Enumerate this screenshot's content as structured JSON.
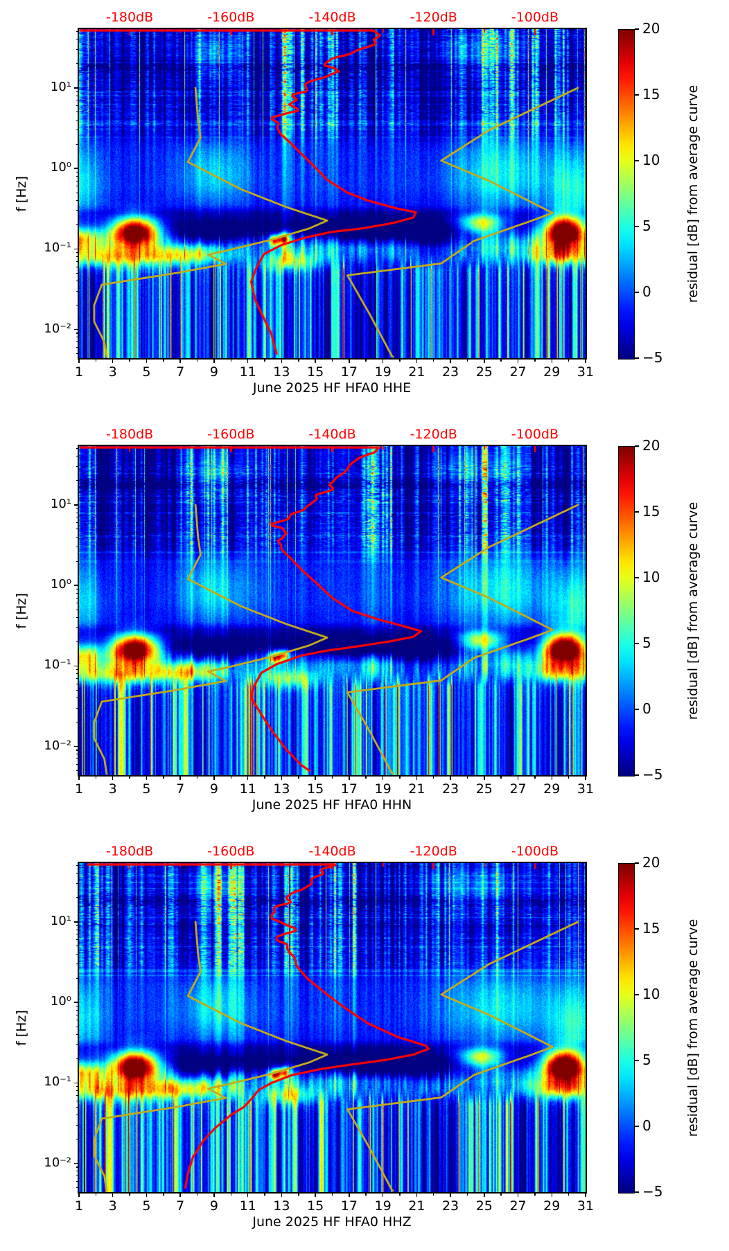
{
  "figure": {
    "background": "#ffffff",
    "subplot_count": 3
  },
  "chart_data": {
    "type": "heatmap",
    "description": "Three spectrogram panels of PSD residual vs average curve, June 2025, station HFA0, channels HHE/HHN/HHZ, with overlaid mode PSD curve (red) and low/high noise model curves (yellow) referenced to the red top dB axis.",
    "subplots": [
      {
        "channel": "HHE",
        "xlabel": "June 2025 HF HFA0  HHE",
        "seed": 11,
        "red_mode_curve_dB_Hz": [
          [
            -189.5,
            53
          ],
          [
            -131,
            53
          ],
          [
            -131,
            45
          ],
          [
            -133,
            38
          ],
          [
            -136,
            30
          ],
          [
            -139,
            24
          ],
          [
            -141,
            19
          ],
          [
            -139,
            16
          ],
          [
            -143,
            13
          ],
          [
            -145,
            11
          ],
          [
            -144,
            9
          ],
          [
            -147,
            7.5
          ],
          [
            -149,
            6.2
          ],
          [
            -148,
            5.2
          ],
          [
            -152,
            4.3
          ],
          [
            -151.5,
            3.4
          ],
          [
            -150,
            2.6
          ],
          [
            -148,
            2.0
          ],
          [
            -146,
            1.5
          ],
          [
            -143.5,
            1.05
          ],
          [
            -141,
            0.72
          ],
          [
            -137,
            0.5
          ],
          [
            -133,
            0.4
          ],
          [
            -127.5,
            0.32
          ],
          [
            -123.5,
            0.285
          ],
          [
            -124,
            0.245
          ],
          [
            -128,
            0.21
          ],
          [
            -134,
            0.18
          ],
          [
            -140,
            0.163
          ],
          [
            -145,
            0.14
          ],
          [
            -150,
            0.112
          ],
          [
            -153.5,
            0.086
          ],
          [
            -155,
            0.058
          ],
          [
            -156,
            0.039
          ],
          [
            -155.2,
            0.023
          ],
          [
            -153.5,
            0.0137
          ],
          [
            -152,
            0.0087
          ],
          [
            -151,
            0.005
          ]
        ]
      },
      {
        "channel": "HHN",
        "xlabel": "June 2025 HF HFA0  HHN",
        "seed": 22,
        "red_mode_curve_dB_Hz": [
          [
            -189.5,
            53
          ],
          [
            -129.5,
            53
          ],
          [
            -130,
            45
          ],
          [
            -133,
            36
          ],
          [
            -136,
            28
          ],
          [
            -139,
            22
          ],
          [
            -140,
            17
          ],
          [
            -142,
            14
          ],
          [
            -144,
            11.5
          ],
          [
            -146,
            9
          ],
          [
            -148,
            7
          ],
          [
            -150,
            5.5
          ],
          [
            -149,
            4.5
          ],
          [
            -151,
            3.6
          ],
          [
            -150,
            2.8
          ],
          [
            -148,
            2.1
          ],
          [
            -146,
            1.55
          ],
          [
            -143,
            1.05
          ],
          [
            -140,
            0.7
          ],
          [
            -136,
            0.48
          ],
          [
            -131,
            0.38
          ],
          [
            -125,
            0.3
          ],
          [
            -122.5,
            0.27
          ],
          [
            -124,
            0.23
          ],
          [
            -129,
            0.2
          ],
          [
            -135,
            0.175
          ],
          [
            -141,
            0.155
          ],
          [
            -146,
            0.135
          ],
          [
            -151,
            0.105
          ],
          [
            -154,
            0.082
          ],
          [
            -155.5,
            0.055
          ],
          [
            -156,
            0.04
          ],
          [
            -154,
            0.025
          ],
          [
            -152,
            0.016
          ],
          [
            -149,
            0.009
          ],
          [
            -146,
            0.0058
          ],
          [
            -144.5,
            0.005
          ]
        ]
      },
      {
        "channel": "HHZ",
        "xlabel": "June 2025 HF HFA0  HHZ",
        "seed": 33,
        "red_mode_curve_dB_Hz": [
          [
            -189.5,
            53
          ],
          [
            -141,
            53
          ],
          [
            -141,
            45
          ],
          [
            -143,
            36
          ],
          [
            -145,
            27
          ],
          [
            -147,
            20
          ],
          [
            -149,
            14
          ],
          [
            -150,
            11
          ],
          [
            -148,
            8.5
          ],
          [
            -151,
            6.5
          ],
          [
            -149.5,
            5
          ],
          [
            -148,
            3.8
          ],
          [
            -147,
            2.8
          ],
          [
            -145,
            2.0
          ],
          [
            -142,
            1.4
          ],
          [
            -138,
            0.9
          ],
          [
            -133,
            0.55
          ],
          [
            -127,
            0.37
          ],
          [
            -121.5,
            0.29
          ],
          [
            -121,
            0.265
          ],
          [
            -124,
            0.225
          ],
          [
            -129,
            0.195
          ],
          [
            -136,
            0.17
          ],
          [
            -142,
            0.15
          ],
          [
            -148,
            0.125
          ],
          [
            -152,
            0.1
          ],
          [
            -154.5,
            0.082
          ],
          [
            -156,
            0.063
          ],
          [
            -157.5,
            0.05
          ],
          [
            -160,
            0.04
          ],
          [
            -163,
            0.028
          ],
          [
            -165.5,
            0.019
          ],
          [
            -167.5,
            0.012
          ],
          [
            -168.5,
            0.0075
          ],
          [
            -169,
            0.005
          ]
        ]
      }
    ],
    "x": {
      "unit": "day of month",
      "range_days": [
        1,
        31
      ],
      "tick_labels_shown": [
        "1",
        "3",
        "5",
        "7",
        "9",
        "11",
        "13",
        "15",
        "17",
        "19",
        "21",
        "23",
        "25",
        "27",
        "29",
        "31"
      ],
      "minor_ticks_days": [
        2,
        4,
        6,
        8,
        10,
        12,
        14,
        16,
        18,
        20,
        22,
        24,
        26,
        28,
        30
      ]
    },
    "y": {
      "label": "f [Hz]",
      "scale": "log",
      "range_hz": [
        0.0044,
        53.7
      ],
      "ticks": [
        {
          "exp": 1,
          "label": "10¹"
        },
        {
          "exp": 0,
          "label": "10⁰"
        },
        {
          "exp": -1,
          "label": "10⁻¹"
        },
        {
          "exp": -2,
          "label": "10⁻²"
        }
      ]
    },
    "top_axis": {
      "unit": "dB",
      "color": "#ff0000",
      "range_dB": [
        -190,
        -90
      ],
      "ticks": [
        {
          "db": -180,
          "label": "-180dB"
        },
        {
          "db": -160,
          "label": "-160dB"
        },
        {
          "db": -140,
          "label": "-140dB"
        },
        {
          "db": -120,
          "label": "-120dB"
        },
        {
          "db": -100,
          "label": "-100dB"
        }
      ],
      "minor_ticks_dB": [
        -170,
        -150,
        -130,
        -110
      ]
    },
    "colorbar": {
      "label": "residual [dB] from average curve",
      "colormap": "jet",
      "vmin": -5,
      "vmax": 20,
      "ticks": [
        {
          "v": 20,
          "label": "20"
        },
        {
          "v": 15,
          "label": "15"
        },
        {
          "v": 10,
          "label": "10"
        },
        {
          "v": 5,
          "label": "5"
        },
        {
          "v": 0,
          "label": "0"
        },
        {
          "v": -5,
          "label": "−5"
        }
      ]
    },
    "overlay_curves": {
      "red_color": "#ff0000",
      "yellow_color": "#c2ab1a",
      "noise_model_low_dB_Hz": [
        [
          -167,
          10
        ],
        [
          -166.5,
          4
        ],
        [
          -166,
          2.4
        ],
        [
          -168.5,
          1.2
        ],
        [
          -158,
          0.55
        ],
        [
          -149,
          0.33
        ],
        [
          -141,
          0.225
        ],
        [
          -144.5,
          0.18
        ],
        [
          -152,
          0.13
        ],
        [
          -161,
          0.095
        ],
        [
          -164.5,
          0.085
        ],
        [
          -161,
          0.065
        ],
        [
          -171,
          0.05
        ],
        [
          -185.5,
          0.036
        ],
        [
          -187,
          0.02
        ],
        [
          -187,
          0.0125
        ],
        [
          -185,
          0.007
        ],
        [
          -184.5,
          0.0044
        ]
      ],
      "noise_model_high_dB_Hz": [
        [
          -91.5,
          10
        ],
        [
          -109,
          3.0
        ],
        [
          -118.5,
          1.25
        ],
        [
          -109,
          0.7
        ],
        [
          -96.5,
          0.28
        ],
        [
          -101,
          0.22
        ],
        [
          -112,
          0.126
        ],
        [
          -118.5,
          0.066
        ],
        [
          -137,
          0.047
        ],
        [
          -132.5,
          0.015
        ],
        [
          -128,
          0.0044
        ]
      ]
    },
    "heatmap_features": [
      {
        "day": 4.3,
        "f": 0.165,
        "amp": 28,
        "sd_day": 1.0,
        "sd_logf": 0.13
      },
      {
        "day": 29.7,
        "f": 0.165,
        "amp": 28,
        "sd_day": 0.85,
        "sd_logf": 0.13
      },
      {
        "day": 24.8,
        "f": 0.21,
        "amp": 14,
        "sd_day": 0.9,
        "sd_logf": 0.09
      },
      {
        "day": 12.6,
        "f": 0.128,
        "amp": 17,
        "sd_day": 0.25,
        "sd_logf": 0.045
      },
      {
        "day": 13.1,
        "f": 0.138,
        "amp": 15,
        "sd_day": 0.25,
        "sd_logf": 0.045
      },
      {
        "day": 1.2,
        "f": 0.14,
        "amp": 9,
        "sd_day": 0.8,
        "sd_logf": 0.1
      },
      {
        "day": 3.5,
        "f": 0.08,
        "amp": 11,
        "sd_day": 2.2,
        "sd_logf": 0.09
      },
      {
        "day": 7.5,
        "f": 0.085,
        "amp": 8,
        "sd_day": 1.5,
        "sd_logf": 0.08
      },
      {
        "day": 29.6,
        "f": 0.085,
        "amp": 11,
        "sd_day": 1.3,
        "sd_logf": 0.09
      },
      {
        "day": 13.5,
        "f": 0.07,
        "amp": 8,
        "sd_day": 1.2,
        "sd_logf": 0.08
      },
      {
        "day": 9.0,
        "f": 0.9,
        "amp": 4.5,
        "sd_day": 1.5,
        "sd_logf": 0.3
      },
      {
        "day": 25.8,
        "f": 0.9,
        "amp": 5,
        "sd_day": 2.2,
        "sd_logf": 0.33
      },
      {
        "day": 30.3,
        "f": 0.5,
        "amp": 6,
        "sd_day": 1.0,
        "sd_logf": 0.4
      },
      {
        "day": 1.3,
        "f": 0.6,
        "amp": 4,
        "sd_day": 0.8,
        "sd_logf": 0.35
      },
      {
        "day": 9.0,
        "f": 25,
        "amp": 5,
        "sd_day": 1.2,
        "sd_logf": 0.22
      },
      {
        "day": 24.5,
        "f": 27,
        "amp": 4.5,
        "sd_day": 2.0,
        "sd_logf": 0.2
      },
      {
        "day": 9.0,
        "f": 0.15,
        "amp": -6,
        "sd_day": 2.0,
        "sd_logf": 0.1
      },
      {
        "day": 18.0,
        "f": 0.16,
        "amp": -7,
        "sd_day": 3.0,
        "sd_logf": 0.1
      },
      {
        "day": 22.0,
        "f": 0.13,
        "amp": -4,
        "sd_day": 1.5,
        "sd_logf": 0.1
      }
    ],
    "dark_horizontal_band": {
      "f_center_hz": 18,
      "amp": -2.4
    }
  }
}
